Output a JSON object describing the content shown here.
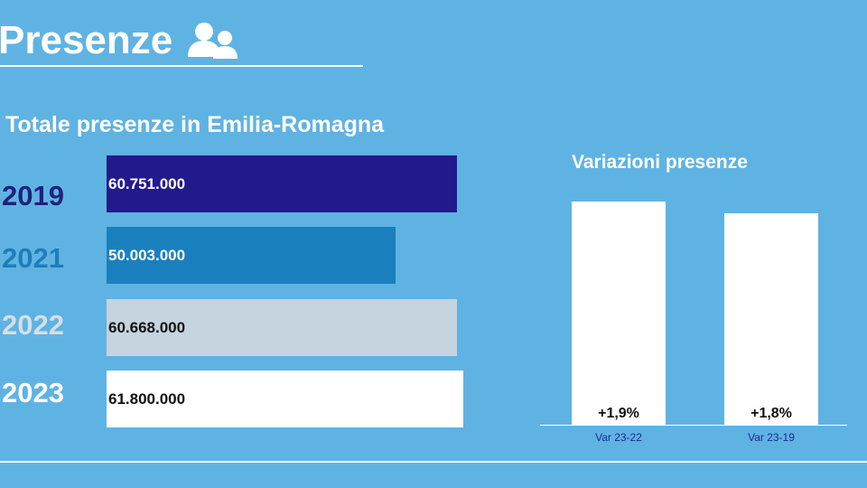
{
  "title": "Presenze",
  "colors": {
    "background": "#5fb3e3",
    "bar_2019": "#221a8c",
    "bar_2021": "#1a80bd",
    "bar_2022": "#c5d4df",
    "bar_2023": "#ffffff"
  },
  "icon": "users-icon",
  "chart_data": [
    {
      "type": "bar",
      "orientation": "horizontal",
      "title": "Totale presenze in Emilia-Romagna",
      "categories": [
        "2019",
        "2021",
        "2022",
        "2023"
      ],
      "values": [
        60751000,
        50003000,
        60668000,
        61800000
      ],
      "value_labels": [
        "60.751.000",
        "50.003.000",
        "60.668.000",
        "61.800.000"
      ],
      "category_colors": [
        "#221a8c",
        "#1a80bd",
        "#c5d4df",
        "#ffffff"
      ],
      "label_colors": [
        "#ffffff",
        "#ffffff",
        "#111111",
        "#111111"
      ],
      "year_colors": [
        "#1e237a",
        "#1f7db8",
        "#d4dfe7",
        "#ffffff"
      ]
    },
    {
      "type": "bar",
      "orientation": "vertical",
      "title": "Variazioni presenze",
      "categories": [
        "Var 23-22",
        "Var 23-19"
      ],
      "values": [
        1.9,
        1.8
      ],
      "value_labels": [
        "+1,9%",
        "+1,8%"
      ]
    }
  ]
}
